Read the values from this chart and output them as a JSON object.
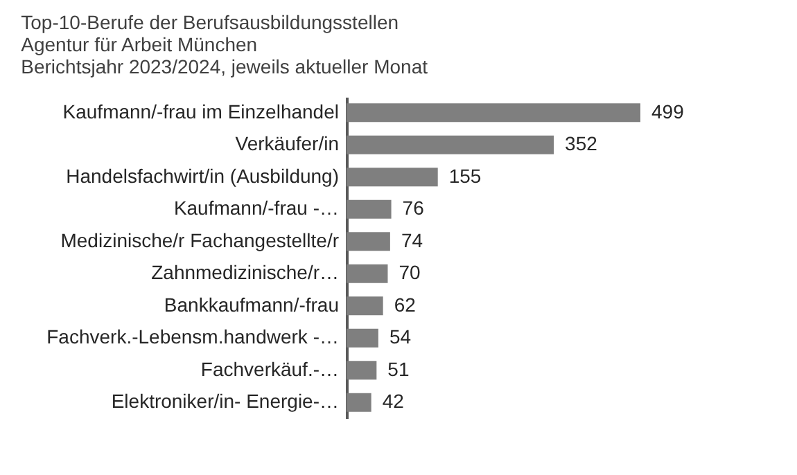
{
  "chart_data": {
    "type": "bar",
    "orientation": "horizontal",
    "title": "Top-10-Berufe der Berufsausbildungsstellen",
    "subtitle": "Agentur für Arbeit München\nBerichtsjahr 2023/2024, jeweils aktueller Monat",
    "categories": [
      "Kaufmann/-frau im Einzelhandel",
      "Verkäufer/in",
      "Handelsfachwirt/in (Ausbildung)",
      "Kaufmann/-frau -…",
      "Medizinische/r Fachangestellte/r",
      "Zahnmedizinische/r…",
      "Bankkaufmann/-frau",
      "Fachverk.-Lebensm.handwerk -…",
      "Fachverkäuf.-…",
      "Elektroniker/in- Energie-…"
    ],
    "values": [
      499,
      352,
      155,
      76,
      74,
      70,
      62,
      54,
      51,
      42
    ],
    "color": "#7f7f7f",
    "data_labels": true
  }
}
